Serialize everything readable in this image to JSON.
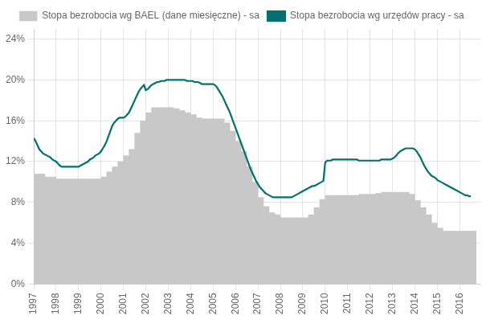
{
  "chart_data": {
    "type": "line",
    "grid": true,
    "legend": "top",
    "xlim": [
      1997,
      2016.92
    ],
    "xticks": [
      1997,
      1998,
      1999,
      2000,
      2001,
      2002,
      2003,
      2004,
      2005,
      2006,
      2007,
      2008,
      2009,
      2010,
      2011,
      2012,
      2013,
      2014,
      2015,
      2016
    ],
    "ylim": [
      0,
      0.25
    ],
    "yticks": [
      {
        "value": 0,
        "label": "0%"
      },
      {
        "value": 0.04,
        "label": "4%"
      },
      {
        "value": 0.08,
        "label": "8%"
      },
      {
        "value": 0.12,
        "label": "12%"
      },
      {
        "value": 0.16,
        "label": "16%"
      },
      {
        "value": 0.2,
        "label": "20%"
      },
      {
        "value": 0.24,
        "label": "24%"
      }
    ],
    "series": [
      {
        "name": "Stopa bezrobocia wg BAEL (dane miesięczne) - sa",
        "type": "step_area",
        "color": "#c8c8c8",
        "x": [
          1997.0,
          1997.25,
          1997.5,
          1997.75,
          1998.0,
          1998.25,
          1998.5,
          1998.75,
          1999.0,
          1999.25,
          1999.5,
          1999.75,
          2000.0,
          2000.25,
          2000.5,
          2000.75,
          2001.0,
          2001.25,
          2001.5,
          2001.75,
          2002.0,
          2002.25,
          2002.5,
          2002.75,
          2003.0,
          2003.25,
          2003.5,
          2003.75,
          2004.0,
          2004.25,
          2004.5,
          2004.75,
          2005.0,
          2005.25,
          2005.5,
          2005.75,
          2006.0,
          2006.25,
          2006.5,
          2006.75,
          2007.0,
          2007.25,
          2007.5,
          2007.75,
          2008.0,
          2008.25,
          2008.5,
          2008.75,
          2009.0,
          2009.25,
          2009.5,
          2009.75,
          2010.0,
          2010.25,
          2010.5,
          2010.75,
          2011.0,
          2011.25,
          2011.5,
          2011.75,
          2012.0,
          2012.25,
          2012.5,
          2012.75,
          2013.0,
          2013.25,
          2013.5,
          2013.75,
          2014.0,
          2014.25,
          2014.5,
          2014.75,
          2015.0,
          2015.25,
          2015.5,
          2015.75,
          2016.0,
          2016.25,
          2016.5,
          2016.75
        ],
        "values": [
          0.108,
          0.108,
          0.105,
          0.105,
          0.103,
          0.103,
          0.103,
          0.103,
          0.103,
          0.103,
          0.103,
          0.103,
          0.105,
          0.11,
          0.115,
          0.12,
          0.126,
          0.132,
          0.148,
          0.16,
          0.168,
          0.173,
          0.173,
          0.173,
          0.173,
          0.172,
          0.17,
          0.168,
          0.166,
          0.163,
          0.162,
          0.162,
          0.162,
          0.162,
          0.158,
          0.15,
          0.14,
          0.13,
          0.115,
          0.1,
          0.085,
          0.076,
          0.07,
          0.068,
          0.065,
          0.065,
          0.065,
          0.065,
          0.065,
          0.068,
          0.075,
          0.083,
          0.087,
          0.087,
          0.087,
          0.087,
          0.087,
          0.087,
          0.088,
          0.088,
          0.088,
          0.089,
          0.09,
          0.09,
          0.09,
          0.09,
          0.09,
          0.088,
          0.082,
          0.075,
          0.068,
          0.06,
          0.055,
          0.052,
          0.052,
          0.052,
          0.052,
          0.052,
          0.052,
          0.052
        ]
      },
      {
        "name": "Stopa bezrobocia wg urzędów pracy - sa",
        "type": "line",
        "color": "#007070",
        "x": [
          1997.0,
          1997.083,
          1997.167,
          1997.25,
          1997.333,
          1997.417,
          1997.5,
          1997.583,
          1997.667,
          1997.75,
          1997.833,
          1997.917,
          1998.0,
          1998.083,
          1998.167,
          1998.25,
          1998.333,
          1998.417,
          1998.5,
          1998.583,
          1998.667,
          1998.75,
          1998.833,
          1998.917,
          1999.0,
          1999.083,
          1999.167,
          1999.25,
          1999.333,
          1999.417,
          1999.5,
          1999.583,
          1999.667,
          1999.75,
          1999.833,
          1999.917,
          2000.0,
          2000.083,
          2000.167,
          2000.25,
          2000.333,
          2000.417,
          2000.5,
          2000.583,
          2000.667,
          2000.75,
          2000.833,
          2000.917,
          2001.0,
          2001.083,
          2001.167,
          2001.25,
          2001.333,
          2001.417,
          2001.5,
          2001.583,
          2001.667,
          2001.75,
          2001.833,
          2001.917,
          2002.0,
          2002.083,
          2002.167,
          2002.25,
          2002.333,
          2002.417,
          2002.5,
          2002.583,
          2002.667,
          2002.75,
          2002.833,
          2002.917,
          2003.0,
          2003.083,
          2003.167,
          2003.25,
          2003.333,
          2003.417,
          2003.5,
          2003.583,
          2003.667,
          2003.75,
          2003.833,
          2003.917,
          2004.0,
          2004.083,
          2004.167,
          2004.25,
          2004.333,
          2004.417,
          2004.5,
          2004.583,
          2004.667,
          2004.75,
          2004.833,
          2004.917,
          2005.0,
          2005.083,
          2005.167,
          2005.25,
          2005.333,
          2005.417,
          2005.5,
          2005.583,
          2005.667,
          2005.75,
          2005.833,
          2005.917,
          2006.0,
          2006.083,
          2006.167,
          2006.25,
          2006.333,
          2006.417,
          2006.5,
          2006.583,
          2006.667,
          2006.75,
          2006.833,
          2006.917,
          2007.0,
          2007.083,
          2007.167,
          2007.25,
          2007.333,
          2007.417,
          2007.5,
          2007.583,
          2007.667,
          2007.75,
          2007.833,
          2007.917,
          2008.0,
          2008.083,
          2008.167,
          2008.25,
          2008.333,
          2008.417,
          2008.5,
          2008.583,
          2008.667,
          2008.75,
          2008.833,
          2008.917,
          2009.0,
          2009.083,
          2009.167,
          2009.25,
          2009.333,
          2009.417,
          2009.5,
          2009.583,
          2009.667,
          2009.75,
          2009.833,
          2009.917,
          2010.0,
          2010.083,
          2010.167,
          2010.25,
          2010.333,
          2010.417,
          2010.5,
          2010.583,
          2010.667,
          2010.75,
          2010.833,
          2010.917,
          2011.0,
          2011.083,
          2011.167,
          2011.25,
          2011.333,
          2011.417,
          2011.5,
          2011.583,
          2011.667,
          2011.75,
          2011.833,
          2011.917,
          2012.0,
          2012.083,
          2012.167,
          2012.25,
          2012.333,
          2012.417,
          2012.5,
          2012.583,
          2012.667,
          2012.75,
          2012.833,
          2012.917,
          2013.0,
          2013.083,
          2013.167,
          2013.25,
          2013.333,
          2013.417,
          2013.5,
          2013.583,
          2013.667,
          2013.75,
          2013.833,
          2013.917,
          2014.0,
          2014.083,
          2014.167,
          2014.25,
          2014.333,
          2014.417,
          2014.5,
          2014.583,
          2014.667,
          2014.75,
          2014.833,
          2014.917,
          2015.0,
          2015.083,
          2015.167,
          2015.25,
          2015.333,
          2015.417,
          2015.5,
          2015.583,
          2015.667,
          2015.75,
          2015.833,
          2015.917,
          2016.0,
          2016.083,
          2016.167,
          2016.25,
          2016.333,
          2016.417,
          2016.5
        ],
        "values": [
          0.143,
          0.14,
          0.136,
          0.132,
          0.13,
          0.128,
          0.127,
          0.126,
          0.125,
          0.124,
          0.122,
          0.121,
          0.12,
          0.118,
          0.116,
          0.115,
          0.115,
          0.115,
          0.115,
          0.115,
          0.115,
          0.115,
          0.115,
          0.115,
          0.115,
          0.116,
          0.117,
          0.118,
          0.119,
          0.12,
          0.122,
          0.123,
          0.124,
          0.126,
          0.127,
          0.128,
          0.13,
          0.133,
          0.136,
          0.14,
          0.145,
          0.15,
          0.155,
          0.158,
          0.16,
          0.162,
          0.163,
          0.163,
          0.163,
          0.164,
          0.166,
          0.168,
          0.172,
          0.176,
          0.18,
          0.184,
          0.188,
          0.191,
          0.193,
          0.195,
          0.19,
          0.191,
          0.193,
          0.195,
          0.196,
          0.197,
          0.198,
          0.198,
          0.199,
          0.199,
          0.199,
          0.2,
          0.2,
          0.2,
          0.2,
          0.2,
          0.2,
          0.2,
          0.2,
          0.2,
          0.2,
          0.2,
          0.199,
          0.199,
          0.199,
          0.199,
          0.198,
          0.198,
          0.198,
          0.197,
          0.196,
          0.196,
          0.196,
          0.196,
          0.196,
          0.196,
          0.196,
          0.195,
          0.193,
          0.19,
          0.187,
          0.184,
          0.18,
          0.176,
          0.172,
          0.168,
          0.163,
          0.158,
          0.153,
          0.148,
          0.143,
          0.138,
          0.133,
          0.128,
          0.123,
          0.118,
          0.113,
          0.109,
          0.105,
          0.101,
          0.098,
          0.095,
          0.093,
          0.091,
          0.089,
          0.088,
          0.087,
          0.086,
          0.085,
          0.085,
          0.085,
          0.085,
          0.085,
          0.085,
          0.085,
          0.085,
          0.085,
          0.085,
          0.085,
          0.086,
          0.087,
          0.088,
          0.089,
          0.09,
          0.091,
          0.092,
          0.093,
          0.094,
          0.095,
          0.096,
          0.096,
          0.097,
          0.098,
          0.099,
          0.1,
          0.101,
          0.119,
          0.121,
          0.121,
          0.121,
          0.122,
          0.122,
          0.122,
          0.122,
          0.122,
          0.122,
          0.122,
          0.122,
          0.122,
          0.122,
          0.122,
          0.122,
          0.122,
          0.122,
          0.121,
          0.121,
          0.121,
          0.121,
          0.121,
          0.121,
          0.121,
          0.121,
          0.121,
          0.121,
          0.121,
          0.121,
          0.122,
          0.122,
          0.122,
          0.122,
          0.122,
          0.122,
          0.123,
          0.124,
          0.126,
          0.128,
          0.13,
          0.131,
          0.132,
          0.133,
          0.133,
          0.133,
          0.133,
          0.133,
          0.132,
          0.13,
          0.127,
          0.124,
          0.12,
          0.116,
          0.113,
          0.11,
          0.108,
          0.106,
          0.105,
          0.104,
          0.102,
          0.101,
          0.1,
          0.099,
          0.098,
          0.097,
          0.096,
          0.095,
          0.094,
          0.093,
          0.092,
          0.091,
          0.09,
          0.089,
          0.088,
          0.087,
          0.087,
          0.086,
          0.086
        ]
      }
    ]
  }
}
